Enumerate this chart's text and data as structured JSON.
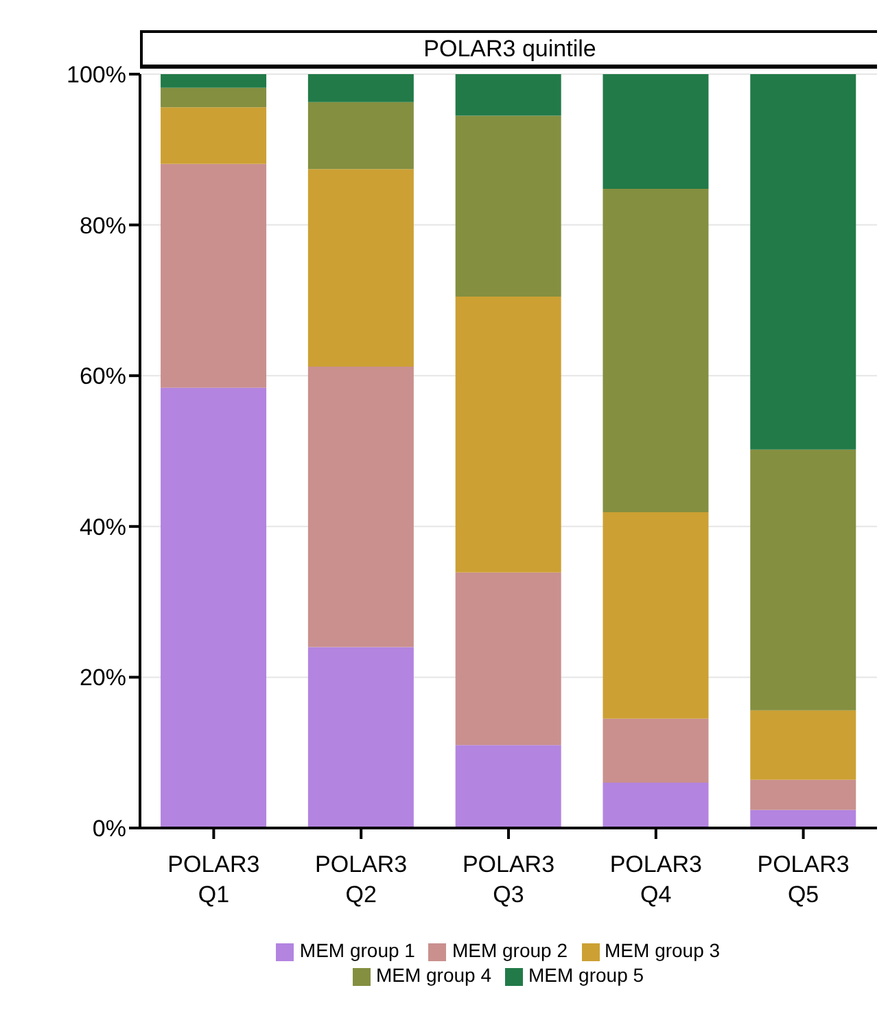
{
  "chart_data": {
    "type": "bar",
    "stacked": true,
    "title": "POLAR3 quintile",
    "categories": [
      "POLAR3 Q1",
      "POLAR3 Q2",
      "POLAR3 Q3",
      "POLAR3 Q4",
      "POLAR3 Q5"
    ],
    "series": [
      {
        "name": "MEM group 1",
        "color": "#b384e0",
        "values": [
          58.4,
          24.0,
          11.0,
          6.0,
          2.4
        ]
      },
      {
        "name": "MEM group 2",
        "color": "#c9908e",
        "values": [
          29.7,
          37.2,
          22.9,
          8.5,
          4.0
        ]
      },
      {
        "name": "MEM group 3",
        "color": "#cca033",
        "values": [
          7.5,
          26.2,
          36.6,
          27.4,
          9.2
        ]
      },
      {
        "name": "MEM group 4",
        "color": "#848f40",
        "values": [
          2.6,
          8.9,
          24.0,
          42.9,
          34.6
        ]
      },
      {
        "name": "MEM group 5",
        "color": "#227a48",
        "values": [
          1.8,
          3.7,
          5.5,
          15.2,
          49.8
        ]
      }
    ],
    "ylim": [
      0,
      100
    ],
    "yticks": [
      {
        "value": 0,
        "label": "0%"
      },
      {
        "value": 20,
        "label": "20%"
      },
      {
        "value": 40,
        "label": "40%"
      },
      {
        "value": 60,
        "label": "60%"
      },
      {
        "value": 80,
        "label": "80%"
      },
      {
        "value": 100,
        "label": "100%"
      }
    ],
    "grid": "y",
    "legend": "bottom"
  }
}
